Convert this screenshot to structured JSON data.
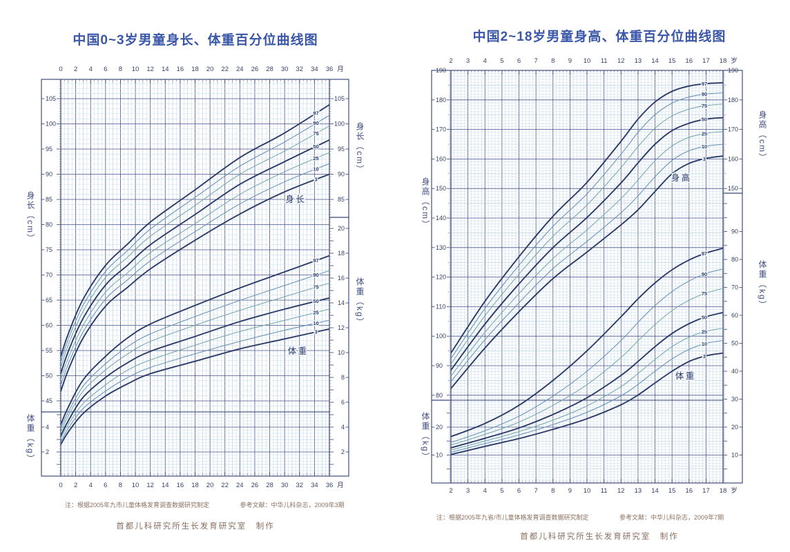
{
  "percentile_line_order": [
    "97",
    "90",
    "75",
    "50",
    "25",
    "10",
    "3"
  ],
  "colors": {
    "title": "#3a56a8",
    "axis_text": "#333f66",
    "frame": "#2f3e6d",
    "grid_fine": "#c7dcec",
    "grid_major": "#46548a",
    "curve_major": "#2c3a68",
    "curve_minor_blue": "#6591b8",
    "curve_minor_teal": "#74a7ad",
    "note_text": "#8a7060"
  },
  "chart_data": [
    {
      "id": "boys-0-3y",
      "type": "line",
      "title": "中国0~3岁男童身长、体重百分位曲线图",
      "x_axis": {
        "label_unit": "月",
        "range": [
          0,
          36
        ],
        "ticks": [
          0,
          2,
          4,
          6,
          8,
          10,
          12,
          14,
          16,
          18,
          20,
          22,
          24,
          26,
          28,
          30,
          32,
          34,
          36
        ]
      },
      "percentile_labels": [
        "97",
        "90",
        "75",
        "50",
        "25",
        "10",
        "3"
      ],
      "series_x": [
        0,
        1,
        3,
        6,
        9,
        12,
        18,
        24,
        30,
        36
      ],
      "length": {
        "name": "身长",
        "axis_title": "身长（cm）",
        "range": [
          45,
          105
        ],
        "left_axis_ticks": [
          105,
          100,
          95,
          90,
          85,
          80,
          75,
          70,
          65,
          60,
          55,
          50,
          45
        ],
        "right_axis_ticks": [
          105,
          100,
          95,
          90,
          85
        ],
        "percentiles": {
          "97": [
            53.8,
            58.3,
            65.2,
            71.9,
            76.2,
            80.5,
            86.9,
            93.3,
            98.2,
            103.8
          ],
          "90": [
            52.7,
            57.2,
            64.0,
            70.7,
            74.9,
            79.1,
            85.4,
            91.6,
            96.4,
            101.7
          ],
          "75": [
            51.6,
            56.1,
            62.8,
            69.5,
            73.6,
            77.7,
            83.8,
            90.0,
            94.6,
            99.6
          ],
          "50": [
            50.4,
            54.8,
            61.4,
            68.0,
            72.0,
            76.0,
            82.0,
            88.0,
            92.5,
            96.8
          ],
          "25": [
            49.2,
            53.5,
            60.0,
            66.6,
            70.5,
            74.4,
            80.2,
            86.0,
            90.5,
            94.3
          ],
          "10": [
            48.1,
            52.3,
            58.7,
            65.2,
            69.1,
            72.8,
            78.6,
            84.1,
            88.5,
            92.1
          ],
          "3": [
            46.9,
            51.1,
            57.5,
            63.8,
            67.6,
            71.2,
            76.9,
            82.1,
            86.5,
            90.0
          ]
        }
      },
      "weight": {
        "name": "体重",
        "axis_title": "体重（kg）",
        "range": [
          2,
          20
        ],
        "left_axis_ticks": [
          4,
          2
        ],
        "right_axis_ticks": [
          20,
          18,
          16,
          14,
          12,
          10,
          8,
          6,
          4,
          2
        ],
        "percentiles": {
          "97": [
            4.2,
            5.6,
            7.8,
            9.7,
            11.2,
            12.3,
            13.8,
            15.2,
            16.5,
            17.8
          ],
          "90": [
            3.9,
            5.2,
            7.3,
            9.1,
            10.5,
            11.5,
            12.9,
            14.2,
            15.4,
            16.6
          ],
          "75": [
            3.6,
            4.9,
            6.9,
            8.6,
            9.9,
            10.9,
            12.2,
            13.4,
            14.5,
            15.6
          ],
          "50": [
            3.3,
            4.5,
            6.4,
            8.0,
            9.2,
            10.1,
            11.3,
            12.5,
            13.5,
            14.4
          ],
          "25": [
            3.1,
            4.2,
            5.9,
            7.4,
            8.6,
            9.4,
            10.6,
            11.7,
            12.6,
            13.5
          ],
          "10": [
            2.8,
            3.9,
            5.5,
            6.9,
            8.0,
            8.8,
            9.9,
            10.9,
            11.8,
            12.6
          ],
          "3": [
            2.6,
            3.6,
            5.1,
            6.5,
            7.5,
            8.3,
            9.3,
            10.3,
            11.1,
            11.9
          ]
        }
      },
      "note": "注：根据2005年九市儿童体格发育调查数据研究制定",
      "reference": "参考文献：中华儿科杂志，2009年3期",
      "credit": "首都儿科研究所生长发育研究室　制作"
    },
    {
      "id": "boys-2-18y",
      "type": "line",
      "title": "中国2~18岁男童身高、体重百分位曲线图",
      "x_axis": {
        "label_unit": "岁",
        "range": [
          2,
          18
        ],
        "ticks": [
          2,
          3,
          4,
          5,
          6,
          7,
          8,
          9,
          10,
          11,
          12,
          13,
          14,
          15,
          16,
          17,
          18
        ]
      },
      "percentile_labels": [
        "97",
        "90",
        "75",
        "50",
        "25",
        "10",
        "3"
      ],
      "series_x": [
        2,
        4,
        6,
        8,
        10,
        12,
        13,
        14,
        15,
        16,
        17,
        18
      ],
      "height": {
        "name": "身高",
        "axis_title": "身高（cm）",
        "range": [
          80,
          190
        ],
        "left_axis_ticks": [
          190,
          180,
          170,
          160,
          150,
          140,
          130,
          120,
          110,
          100,
          90,
          80
        ],
        "right_axis_ticks": [
          190,
          180,
          170,
          160,
          150
        ],
        "percentiles": {
          "97": [
            94.3,
            111.8,
            126.9,
            140.6,
            152.1,
            166.0,
            173.5,
            179.3,
            182.9,
            184.7,
            185.5,
            185.8
          ],
          "90": [
            92.4,
            109.4,
            124.0,
            137.2,
            148.2,
            161.6,
            169.0,
            175.0,
            178.9,
            181.0,
            182.0,
            182.4
          ],
          "75": [
            90.6,
            106.9,
            121.0,
            133.8,
            144.4,
            157.1,
            164.2,
            170.4,
            174.6,
            176.9,
            178.1,
            178.6
          ],
          "50": [
            88.5,
            104.1,
            117.7,
            130.0,
            140.2,
            151.9,
            158.7,
            165.0,
            169.6,
            172.1,
            173.5,
            174.0
          ],
          "25": [
            86.5,
            101.3,
            114.4,
            126.3,
            136.0,
            146.6,
            152.9,
            159.4,
            164.4,
            167.3,
            168.7,
            169.3
          ],
          "10": [
            84.6,
            98.8,
            111.3,
            122.9,
            132.1,
            141.8,
            147.5,
            154.0,
            159.5,
            162.8,
            164.3,
            165.0
          ],
          "3": [
            82.3,
            96.0,
            108.3,
            119.5,
            128.5,
            137.7,
            142.8,
            149.0,
            155.0,
            158.5,
            160.2,
            161.0
          ]
        }
      },
      "weight": {
        "name": "体重",
        "axis_title": "体重（kg）",
        "range": [
          10,
          90
        ],
        "left_axis_ticks": [
          20,
          10
        ],
        "right_axis_ticks": [
          90,
          80,
          70,
          60,
          50,
          40,
          30,
          20,
          10
        ],
        "percentiles": {
          "97": [
            16.6,
            21.3,
            27.8,
            36.7,
            47.3,
            59.5,
            65.9,
            71.6,
            76.3,
            79.8,
            82.3,
            84.0
          ],
          "90": [
            14.5,
            18.7,
            23.9,
            31.1,
            40.0,
            51.0,
            57.5,
            63.5,
            68.5,
            72.3,
            75.0,
            76.6
          ],
          "75": [
            13.6,
            17.4,
            21.8,
            27.8,
            35.2,
            44.9,
            50.9,
            56.7,
            61.7,
            65.4,
            68.0,
            69.6
          ],
          "50": [
            12.6,
            16.0,
            19.7,
            24.5,
            30.5,
            38.5,
            43.5,
            48.8,
            53.5,
            57.0,
            59.5,
            61.0
          ],
          "25": [
            11.8,
            15.0,
            18.4,
            22.5,
            27.6,
            34.5,
            39.2,
            44.2,
            48.8,
            52.2,
            54.3,
            55.4
          ],
          "10": [
            11.0,
            14.1,
            17.2,
            20.9,
            25.3,
            31.2,
            35.3,
            40.0,
            44.4,
            47.8,
            50.0,
            51.0
          ],
          "3": [
            10.2,
            13.1,
            15.9,
            19.2,
            23.0,
            28.0,
            31.5,
            35.8,
            40.0,
            43.5,
            45.5,
            46.5
          ]
        }
      },
      "note": "注：根据2005年九省/市儿童体格发育调查数据研究制定",
      "reference": "参考文献：中华儿科杂志，2009年7期",
      "credit": "首都儿科研究所生长发育研究室　制作"
    }
  ]
}
